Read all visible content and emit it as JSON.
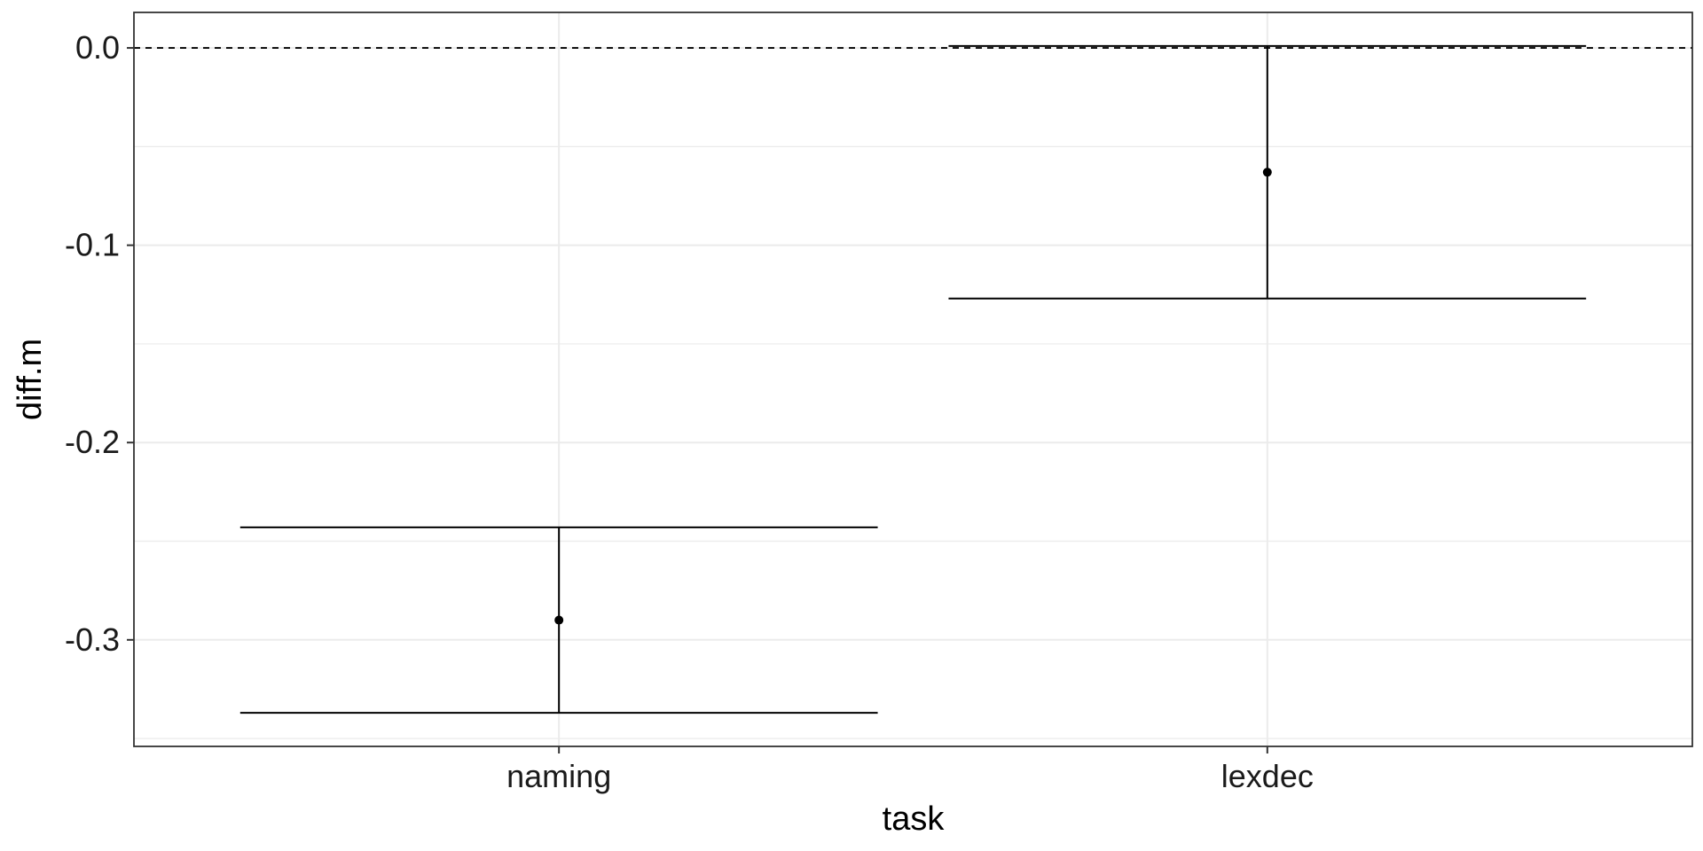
{
  "chart_data": {
    "type": "errorbar",
    "xlabel": "task",
    "ylabel": "diff.m",
    "categories": [
      "naming",
      "lexdec"
    ],
    "series": [
      {
        "values": [
          -0.29,
          -0.063
        ],
        "lower": [
          -0.337,
          -0.127
        ],
        "upper": [
          -0.243,
          0.001
        ]
      }
    ],
    "ylim": [
      -0.354,
      0.018
    ],
    "yticks": [
      0.0,
      -0.1,
      -0.2,
      -0.3
    ],
    "ytick_labels": [
      "0.0",
      "-0.1",
      "-0.2",
      "-0.3"
    ],
    "reference_line": {
      "y": 0.0,
      "style": "dashed"
    },
    "grid": true,
    "legend": "none",
    "colors": {
      "points": "#000000",
      "grid": "#ebebeb",
      "panel_border": "#333333"
    }
  }
}
